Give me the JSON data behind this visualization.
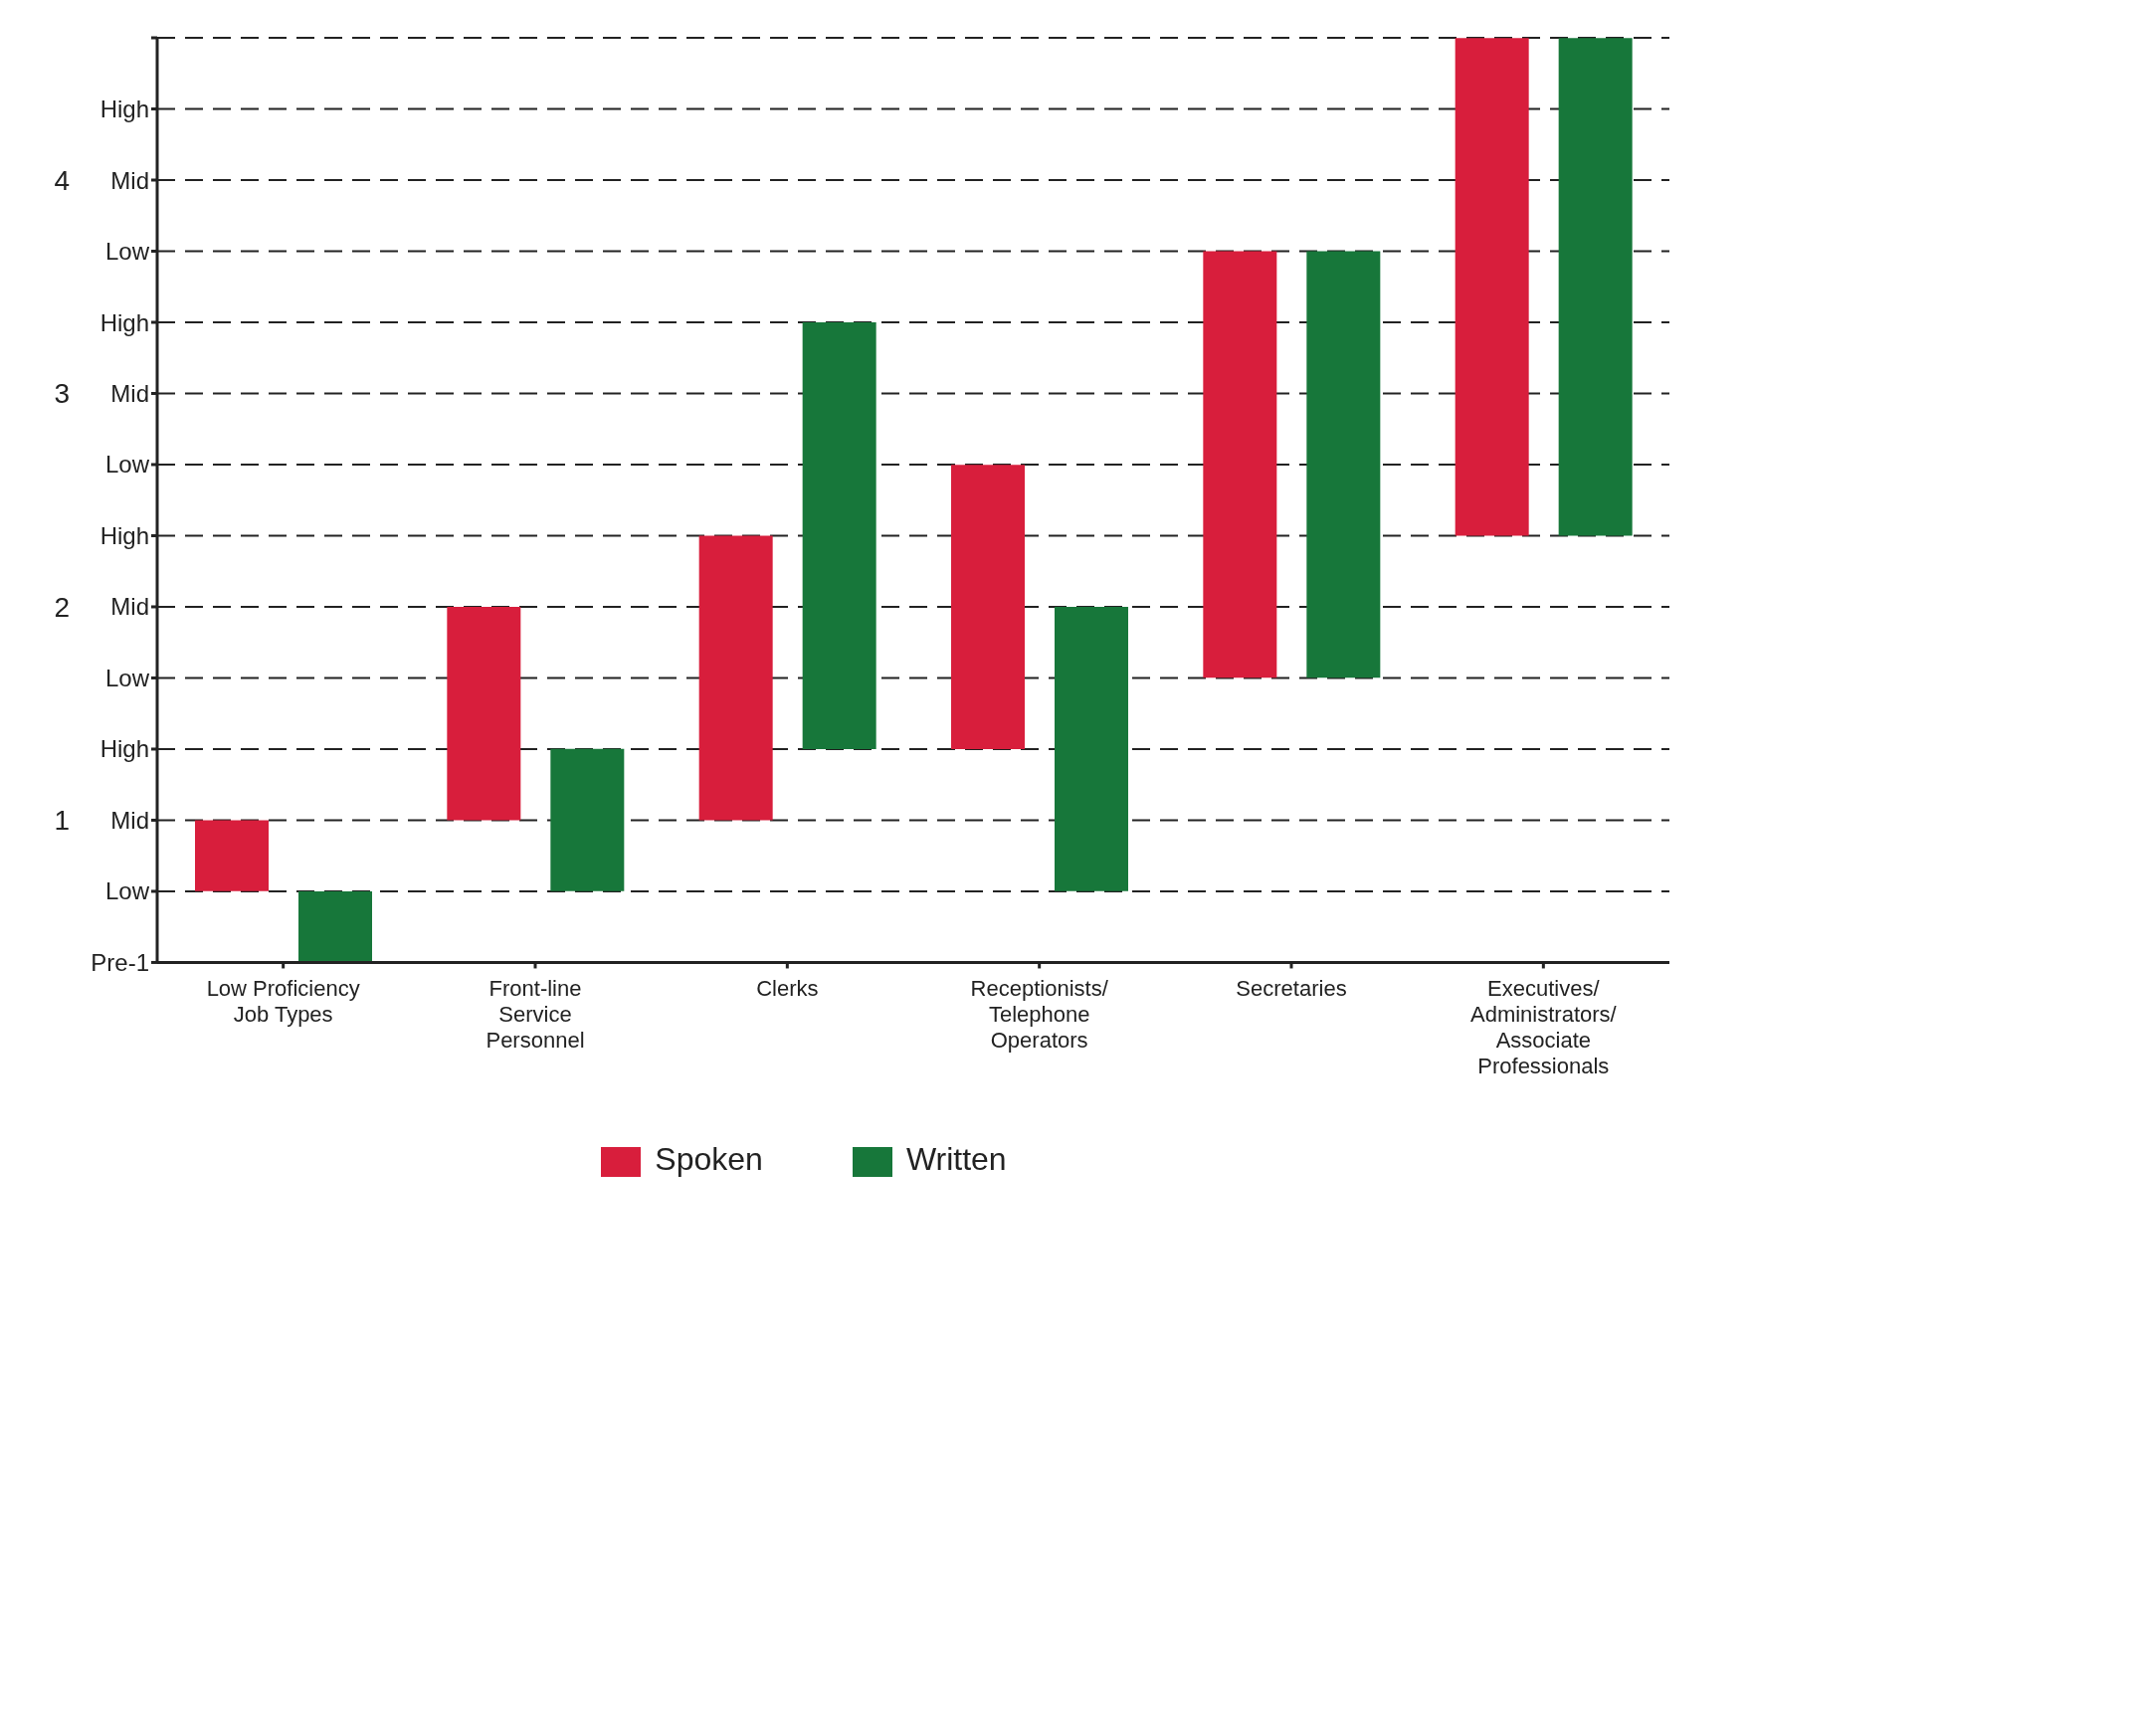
{
  "chart_data": {
    "type": "bar",
    "categories": [
      "Low Proficiency Job Types",
      "Front-line Service Personnel",
      "Clerks",
      "Receptionists/ Telephone Operators",
      "Secretaries",
      "Executives/ Administrators/ Associate Professionals"
    ],
    "series": [
      {
        "name": "Spoken",
        "color": "#d81e3c",
        "base": [
          0.667,
          1,
          1,
          1.333,
          1.667,
          2.333
        ],
        "values": [
          0.333,
          1,
          1.333,
          1.333,
          2,
          2.333
        ]
      },
      {
        "name": "Written",
        "color": "#17773a",
        "base": [
          0.333,
          0.667,
          1.333,
          0.667,
          1.667,
          2.333
        ],
        "values": [
          0.333,
          0.667,
          2,
          1.333,
          2,
          2.333
        ]
      }
    ],
    "ylim": [
      0.333,
      4.667
    ],
    "yticks": [
      1,
      2,
      3,
      4
    ],
    "y2_categories": [
      null,
      "High",
      "Mid",
      "Low",
      "High",
      "Mid",
      "Low",
      "High",
      "Mid",
      "Low",
      "High",
      "Mid",
      "Low",
      "Pre-1"
    ],
    "grid": "y",
    "legend": "bottom"
  }
}
